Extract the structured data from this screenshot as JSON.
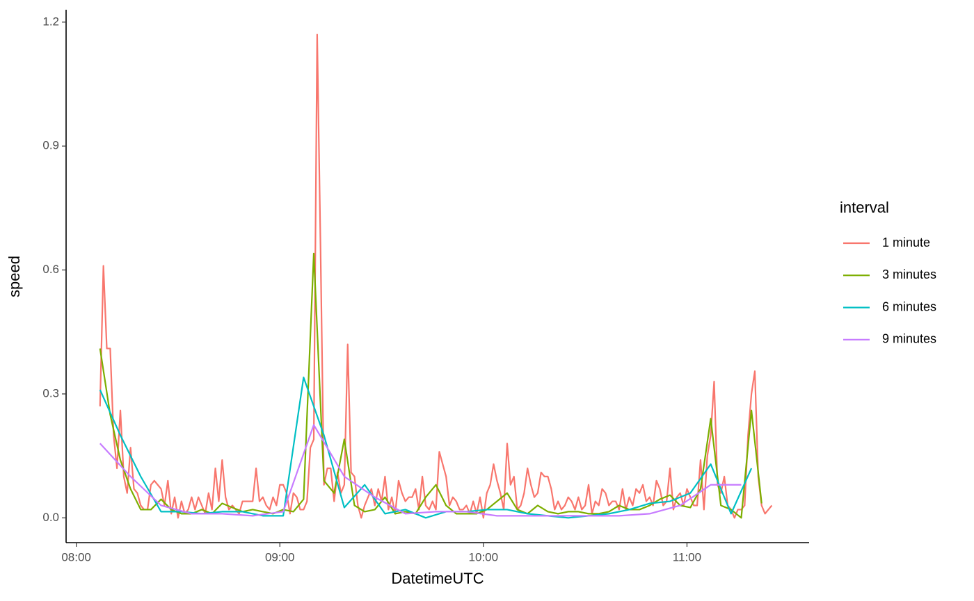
{
  "chart_data": {
    "type": "line",
    "xlabel": "DatetimeUTC",
    "ylabel": "speed",
    "legend_title": "interval",
    "legend": "right",
    "xlim": [
      "07:57",
      "11:36"
    ],
    "xticks": [
      "08:00",
      "09:00",
      "10:00",
      "11:00"
    ],
    "ylim": [
      -0.06,
      1.23
    ],
    "yticks": [
      {
        "value": 0,
        "label": "0.0"
      },
      0.3,
      0.6,
      0.9,
      1.2
    ],
    "grid": false,
    "series": [
      {
        "name": "1 minute",
        "color": "#F8766D",
        "x": [
          "08:07",
          "08:08",
          "08:09",
          "08:10",
          "08:11",
          "08:12",
          "08:13",
          "08:14",
          "08:15",
          "08:16",
          "08:17",
          "08:18",
          "08:19",
          "08:20",
          "08:21",
          "08:22",
          "08:23",
          "08:24",
          "08:25",
          "08:26",
          "08:27",
          "08:28",
          "08:29",
          "08:30",
          "08:31",
          "08:32",
          "08:33",
          "08:34",
          "08:35",
          "08:36",
          "08:37",
          "08:38",
          "08:39",
          "08:40",
          "08:41",
          "08:42",
          "08:43",
          "08:44",
          "08:45",
          "08:46",
          "08:47",
          "08:48",
          "08:49",
          "08:50",
          "08:51",
          "08:52",
          "08:53",
          "08:54",
          "08:55",
          "08:56",
          "08:57",
          "08:58",
          "08:59",
          "09:00",
          "09:01",
          "09:02",
          "09:03",
          "09:04",
          "09:05",
          "09:06",
          "09:07",
          "09:08",
          "09:09",
          "09:10",
          "09:11",
          "09:12",
          "09:13",
          "09:14",
          "09:15",
          "09:16",
          "09:17",
          "09:18",
          "09:19",
          "09:20",
          "09:21",
          "09:22",
          "09:23",
          "09:24",
          "09:25",
          "09:26",
          "09:27",
          "09:28",
          "09:29",
          "09:30",
          "09:31",
          "09:32",
          "09:33",
          "09:34",
          "09:35",
          "09:36",
          "09:37",
          "09:38",
          "09:39",
          "09:40",
          "09:41",
          "09:42",
          "09:43",
          "09:44",
          "09:45",
          "09:46",
          "09:47",
          "09:48",
          "09:49",
          "09:50",
          "09:51",
          "09:52",
          "09:53",
          "09:54",
          "09:55",
          "09:56",
          "09:57",
          "09:58",
          "09:59",
          "10:00",
          "10:01",
          "10:02",
          "10:03",
          "10:04",
          "10:05",
          "10:06",
          "10:07",
          "10:08",
          "10:09",
          "10:10",
          "10:11",
          "10:12",
          "10:13",
          "10:14",
          "10:15",
          "10:16",
          "10:17",
          "10:18",
          "10:19",
          "10:20",
          "10:21",
          "10:22",
          "10:23",
          "10:24",
          "10:25",
          "10:26",
          "10:27",
          "10:28",
          "10:29",
          "10:30",
          "10:31",
          "10:32",
          "10:33",
          "10:34",
          "10:35",
          "10:36",
          "10:37",
          "10:38",
          "10:39",
          "10:40",
          "10:41",
          "10:42",
          "10:43",
          "10:44",
          "10:45",
          "10:46",
          "10:47",
          "10:48",
          "10:49",
          "10:50",
          "10:51",
          "10:52",
          "10:53",
          "10:54",
          "10:55",
          "10:56",
          "10:57",
          "10:58",
          "10:59",
          "11:00",
          "11:01",
          "11:02",
          "11:03",
          "11:04",
          "11:05",
          "11:06",
          "11:07",
          "11:08",
          "11:09",
          "11:10",
          "11:11",
          "11:12",
          "11:13",
          "11:14",
          "11:15",
          "11:16",
          "11:17",
          "11:18",
          "11:19",
          "11:20",
          "11:21",
          "11:22",
          "11:23",
          "11:24",
          "11:25"
        ],
        "values": [
          0.27,
          0.61,
          0.41,
          0.41,
          0.2,
          0.12,
          0.26,
          0.1,
          0.06,
          0.17,
          0.07,
          0.06,
          0.03,
          0.02,
          0.02,
          0.08,
          0.09,
          0.08,
          0.07,
          0.03,
          0.09,
          0.01,
          0.05,
          0.0,
          0.04,
          0.01,
          0.02,
          0.05,
          0.02,
          0.05,
          0.03,
          0.01,
          0.06,
          0.02,
          0.12,
          0.04,
          0.14,
          0.05,
          0.02,
          0.03,
          0.02,
          0.01,
          0.04,
          0.04,
          0.04,
          0.04,
          0.12,
          0.04,
          0.05,
          0.03,
          0.02,
          0.05,
          0.03,
          0.08,
          0.08,
          0.06,
          0.01,
          0.06,
          0.05,
          0.02,
          0.02,
          0.04,
          0.17,
          0.19,
          1.17,
          0.65,
          0.08,
          0.12,
          0.12,
          0.04,
          0.11,
          0.06,
          0.08,
          0.42,
          0.11,
          0.1,
          0.03,
          0.0,
          0.03,
          0.05,
          0.07,
          0.03,
          0.07,
          0.04,
          0.1,
          0.02,
          0.05,
          0.01,
          0.09,
          0.06,
          0.04,
          0.05,
          0.05,
          0.07,
          0.02,
          0.1,
          0.03,
          0.02,
          0.04,
          0.02,
          0.16,
          0.13,
          0.1,
          0.03,
          0.05,
          0.04,
          0.02,
          0.02,
          0.03,
          0.01,
          0.04,
          0.01,
          0.05,
          0.0,
          0.06,
          0.08,
          0.13,
          0.09,
          0.06,
          0.02,
          0.18,
          0.08,
          0.1,
          0.02,
          0.03,
          0.06,
          0.12,
          0.08,
          0.05,
          0.06,
          0.11,
          0.1,
          0.1,
          0.07,
          0.02,
          0.04,
          0.02,
          0.03,
          0.05,
          0.04,
          0.02,
          0.05,
          0.02,
          0.03,
          0.08,
          0.01,
          0.04,
          0.03,
          0.07,
          0.06,
          0.03,
          0.04,
          0.04,
          0.02,
          0.07,
          0.02,
          0.05,
          0.03,
          0.07,
          0.06,
          0.08,
          0.04,
          0.05,
          0.03,
          0.09,
          0.07,
          0.03,
          0.04,
          0.12,
          0.02,
          0.05,
          0.06,
          0.03,
          0.07,
          0.05,
          0.03,
          0.03,
          0.14,
          0.02,
          0.15,
          0.2,
          0.33,
          0.08,
          0.06,
          0.1,
          0.03,
          0.02,
          0.0,
          0.02,
          0.02,
          0.03,
          0.2,
          0.3,
          0.355,
          0.1,
          0.03,
          0.01,
          0.02,
          0.03
        ]
      },
      {
        "name": "3 minutes",
        "color": "#7CAE00",
        "x": [
          "08:07",
          "08:10",
          "08:13",
          "08:16",
          "08:19",
          "08:22",
          "08:25",
          "08:28",
          "08:31",
          "08:34",
          "08:37",
          "08:40",
          "08:43",
          "08:46",
          "08:49",
          "08:52",
          "08:55",
          "08:58",
          "09:01",
          "09:04",
          "09:07",
          "09:10",
          "09:13",
          "09:16",
          "09:19",
          "09:22",
          "09:25",
          "09:28",
          "09:31",
          "09:34",
          "09:37",
          "09:40",
          "09:43",
          "09:46",
          "09:49",
          "09:52",
          "09:55",
          "09:58",
          "10:01",
          "10:04",
          "10:07",
          "10:10",
          "10:13",
          "10:16",
          "10:19",
          "10:22",
          "10:25",
          "10:28",
          "10:31",
          "10:34",
          "10:37",
          "10:40",
          "10:43",
          "10:46",
          "10:49",
          "10:52",
          "10:55",
          "10:58",
          "11:01",
          "11:04",
          "11:07",
          "11:10",
          "11:13",
          "11:16",
          "11:19",
          "11:22"
        ],
        "values": [
          0.41,
          0.25,
          0.14,
          0.07,
          0.02,
          0.02,
          0.045,
          0.02,
          0.01,
          0.01,
          0.02,
          0.01,
          0.035,
          0.025,
          0.015,
          0.02,
          0.015,
          0.01,
          0.02,
          0.015,
          0.045,
          0.64,
          0.09,
          0.06,
          0.19,
          0.03,
          0.015,
          0.02,
          0.05,
          0.01,
          0.015,
          0.01,
          0.05,
          0.08,
          0.03,
          0.01,
          0.01,
          0.01,
          0.02,
          0.04,
          0.06,
          0.02,
          0.01,
          0.03,
          0.015,
          0.01,
          0.015,
          0.015,
          0.01,
          0.01,
          0.015,
          0.03,
          0.02,
          0.02,
          0.03,
          0.045,
          0.055,
          0.03,
          0.025,
          0.07,
          0.24,
          0.03,
          0.02,
          0.0,
          0.26,
          0.035
        ]
      },
      {
        "name": "6 minutes",
        "color": "#00BFC4",
        "x": [
          "08:07",
          "08:13",
          "08:19",
          "08:25",
          "08:31",
          "08:37",
          "08:43",
          "08:49",
          "08:55",
          "09:01",
          "09:07",
          "09:13",
          "09:19",
          "09:25",
          "09:31",
          "09:37",
          "09:43",
          "09:49",
          "09:55",
          "10:01",
          "10:07",
          "10:13",
          "10:19",
          "10:25",
          "10:31",
          "10:37",
          "10:43",
          "10:49",
          "10:55",
          "11:01",
          "11:07",
          "11:13",
          "11:19"
        ],
        "values": [
          0.31,
          0.2,
          0.1,
          0.015,
          0.015,
          0.01,
          0.015,
          0.015,
          0.005,
          0.005,
          0.34,
          0.2,
          0.025,
          0.08,
          0.01,
          0.02,
          0.0,
          0.015,
          0.015,
          0.02,
          0.02,
          0.01,
          0.005,
          0.0,
          0.005,
          0.01,
          0.02,
          0.035,
          0.04,
          0.06,
          0.13,
          0.01,
          0.12
        ]
      },
      {
        "name": "9 minutes",
        "color": "#C77CFF",
        "x": [
          "08:07",
          "08:16",
          "08:25",
          "08:34",
          "08:43",
          "08:52",
          "09:01",
          "09:10",
          "09:19",
          "09:28",
          "09:37",
          "09:46",
          "09:55",
          "10:04",
          "10:13",
          "10:22",
          "10:31",
          "10:40",
          "10:49",
          "10:58",
          "11:07",
          "11:16"
        ],
        "values": [
          0.18,
          0.1,
          0.03,
          0.01,
          0.01,
          0.005,
          0.015,
          0.225,
          0.1,
          0.05,
          0.01,
          0.015,
          0.015,
          0.005,
          0.005,
          0.005,
          0.005,
          0.005,
          0.01,
          0.03,
          0.08,
          0.08
        ]
      }
    ]
  }
}
